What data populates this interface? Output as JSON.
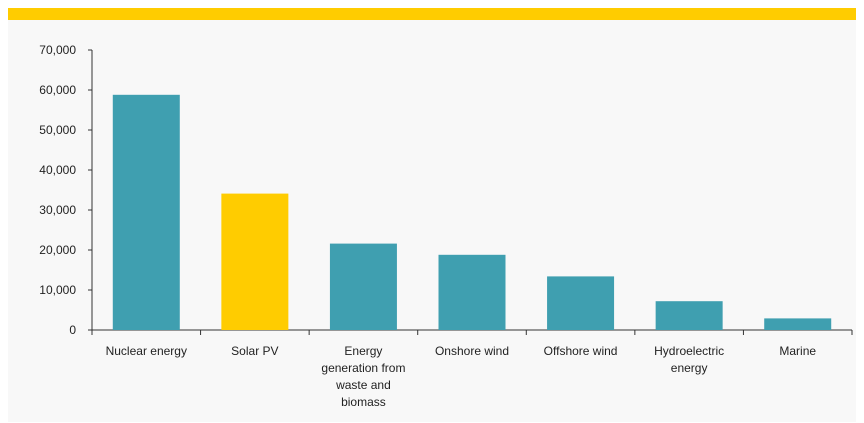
{
  "colors": {
    "accent_bar": "#FFCC00",
    "bar_default": "#3F9FB0",
    "bar_highlight": "#FFCC00",
    "panel_bg": "#F8F8F8"
  },
  "chart_data": {
    "type": "bar",
    "title": "",
    "xlabel": "",
    "ylabel": "",
    "ylim": [
      0,
      70000
    ],
    "yticks": [
      0,
      10000,
      20000,
      30000,
      40000,
      50000,
      60000,
      70000
    ],
    "ytick_labels": [
      "0",
      "10,000",
      "20,000",
      "30,000",
      "40,000",
      "50,000",
      "60,000",
      "70,000"
    ],
    "grid": false,
    "categories": [
      [
        "Nuclear energy"
      ],
      [
        "Solar PV"
      ],
      [
        "Energy",
        "generation from",
        "waste and",
        "biomass"
      ],
      [
        "Onshore wind"
      ],
      [
        "Offshore wind"
      ],
      [
        "Hydroelectric",
        "energy"
      ],
      [
        "Marine"
      ]
    ],
    "values": [
      58800,
      34100,
      21600,
      18800,
      13400,
      7200,
      2900
    ],
    "highlight_index": 1
  }
}
